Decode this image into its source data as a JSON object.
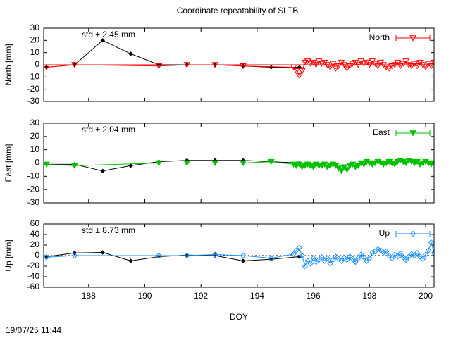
{
  "title": "Coordinate repeatability of SLTB",
  "timestamp": "19/07/25 11:44",
  "chart_data": [
    {
      "type": "line",
      "ylabel": "North [mm]",
      "annotation": "std ± 2.45 mm",
      "annotation_color": "#ff0000",
      "xlim": [
        186.4,
        200.3
      ],
      "xticks": [
        188,
        190,
        192,
        194,
        196,
        198,
        200
      ],
      "xtick_labels": false,
      "ylim": [
        -30,
        30
      ],
      "yticks": [
        -30,
        -20,
        -10,
        0,
        10,
        20,
        30
      ],
      "zero_line": "solid",
      "zero_color": "#ff0000",
      "series": [
        {
          "color": "#000000",
          "marker": "diamond-filled",
          "x": [
            186.5,
            187.5,
            188.5,
            189.5,
            190.5,
            191.5,
            192.5,
            193.5,
            194.5,
            195.5
          ],
          "values": [
            -2,
            0,
            20,
            9,
            0,
            0,
            0,
            -1,
            -2,
            -2
          ]
        },
        {
          "name": "North",
          "color": "#ff0000",
          "marker": "triangle-down-open",
          "x": [
            186.5,
            187.5,
            190.5,
            191.5,
            192.5,
            193.5,
            195.3,
            195.4,
            195.5,
            195.6,
            195.7,
            195.8,
            195.9,
            196.0,
            196.1,
            196.2,
            196.3,
            196.4,
            196.5,
            196.6,
            196.7,
            196.8,
            196.9,
            197.0,
            197.1,
            197.2,
            197.3,
            197.4,
            197.5,
            197.6,
            197.7,
            197.8,
            197.9,
            198.0,
            198.1,
            198.2,
            198.3,
            198.4,
            198.5,
            198.6,
            198.7,
            198.8,
            198.9,
            199.0,
            199.1,
            199.2,
            199.3,
            199.4,
            199.5,
            199.6,
            199.7,
            199.8,
            199.9,
            200.0,
            200.1,
            200.2,
            200.3
          ],
          "values": [
            -2,
            0,
            -1,
            0,
            0,
            -1,
            -2,
            -5,
            -9,
            -5,
            2,
            3,
            1,
            2,
            0,
            3,
            1,
            2,
            0,
            -2,
            1,
            -3,
            -1,
            2,
            0,
            -3,
            -1,
            1,
            2,
            0,
            3,
            1,
            2,
            0,
            3,
            1,
            -1,
            2,
            0,
            -2,
            -3,
            -1,
            0,
            2,
            -1,
            1,
            3,
            0,
            -1,
            1,
            -1,
            2,
            0,
            -2,
            1,
            -1,
            2
          ]
        }
      ]
    },
    {
      "type": "line",
      "ylabel": "East [mm]",
      "annotation": "std ± 2.04 mm",
      "annotation_color": "#00c000",
      "xlim": [
        186.4,
        200.3
      ],
      "xticks": [
        188,
        190,
        192,
        194,
        196,
        198,
        200
      ],
      "xtick_labels": false,
      "ylim": [
        -30,
        30
      ],
      "yticks": [
        -30,
        -20,
        -10,
        0,
        10,
        20,
        30
      ],
      "zero_line": "dashed",
      "zero_color": "#000000",
      "series": [
        {
          "color": "#000000",
          "marker": "diamond-filled",
          "x": [
            186.5,
            187.5,
            188.5,
            189.5,
            190.5,
            191.5,
            192.5,
            193.5,
            194.5,
            195.5
          ],
          "values": [
            -1,
            -1,
            -6,
            -2,
            1,
            2,
            2,
            2,
            1,
            0
          ]
        },
        {
          "name": "East",
          "color": "#00c000",
          "marker": "triangle-down-filled",
          "x": [
            186.5,
            187.5,
            190.5,
            191.5,
            192.5,
            193.5,
            194.5,
            195.3,
            195.4,
            195.5,
            195.6,
            195.7,
            195.8,
            195.9,
            196.0,
            196.1,
            196.2,
            196.3,
            196.4,
            196.5,
            196.6,
            196.7,
            196.8,
            196.9,
            197.0,
            197.1,
            197.2,
            197.3,
            197.4,
            197.5,
            197.6,
            197.7,
            197.8,
            197.9,
            198.0,
            198.1,
            198.2,
            198.3,
            198.4,
            198.5,
            198.6,
            198.7,
            198.8,
            198.9,
            199.0,
            199.1,
            199.2,
            199.3,
            199.4,
            199.5,
            199.6,
            199.7,
            199.8,
            199.9,
            200.0,
            200.1,
            200.2,
            200.3
          ],
          "values": [
            -1,
            -2,
            0,
            0,
            0,
            0,
            1,
            -1,
            -2,
            -1,
            -3,
            -2,
            -1,
            -2,
            -3,
            -1,
            -2,
            -2,
            -1,
            -3,
            -2,
            -1,
            -2,
            -4,
            -6,
            -3,
            -5,
            -2,
            -1,
            -3,
            -2,
            0,
            -1,
            1,
            0,
            -1,
            0,
            1,
            0,
            -1,
            0,
            1,
            0,
            -1,
            1,
            2,
            1,
            0,
            2,
            1,
            0,
            1,
            -1,
            0,
            1,
            0,
            -1,
            0
          ]
        }
      ]
    },
    {
      "type": "line",
      "ylabel": "Up [mm]",
      "annotation": "std ± 8.73 mm",
      "annotation_color": "#1e90ff",
      "xlabel": "DOY",
      "xlim": [
        186.4,
        200.3
      ],
      "xticks": [
        188,
        190,
        192,
        194,
        196,
        198,
        200
      ],
      "xtick_labels": true,
      "ylim": [
        -60,
        60
      ],
      "yticks": [
        -60,
        -40,
        -20,
        0,
        20,
        40,
        60
      ],
      "zero_line": "dashed",
      "zero_color": "#000000",
      "series": [
        {
          "color": "#000000",
          "marker": "diamond-filled",
          "x": [
            186.5,
            187.5,
            188.5,
            189.5,
            190.5,
            191.5,
            192.5,
            193.5,
            194.5,
            195.5
          ],
          "values": [
            -2,
            5,
            6,
            -10,
            -2,
            1,
            0,
            -10,
            -7,
            -2
          ]
        },
        {
          "name": "Up",
          "color": "#1e90ff",
          "marker": "diamond-open",
          "x": [
            186.5,
            187.5,
            190.5,
            191.5,
            192.5,
            193.5,
            194.5,
            195.3,
            195.4,
            195.5,
            195.6,
            195.7,
            195.8,
            195.9,
            196.0,
            196.1,
            196.2,
            196.3,
            196.4,
            196.5,
            196.6,
            196.7,
            196.8,
            196.9,
            197.0,
            197.1,
            197.2,
            197.3,
            197.4,
            197.5,
            197.6,
            197.7,
            197.8,
            197.9,
            198.0,
            198.1,
            198.2,
            198.3,
            198.4,
            198.5,
            198.6,
            198.7,
            198.8,
            198.9,
            199.0,
            199.1,
            199.2,
            199.3,
            199.4,
            199.5,
            199.6,
            199.7,
            199.8,
            199.9,
            200.0,
            200.1,
            200.2,
            200.3
          ],
          "values": [
            -3,
            0,
            0,
            0,
            2,
            0,
            -5,
            3,
            10,
            15,
            0,
            -20,
            -10,
            -15,
            -5,
            -12,
            -8,
            -3,
            -10,
            -5,
            -15,
            -8,
            -2,
            -6,
            -10,
            -4,
            -8,
            -2,
            -6,
            -12,
            -5,
            2,
            -3,
            -10,
            -5,
            5,
            8,
            12,
            10,
            6,
            8,
            0,
            -5,
            2,
            -2,
            4,
            -3,
            -8,
            -2,
            3,
            0,
            5,
            -2,
            -6,
            2,
            10,
            25,
            5
          ]
        }
      ]
    }
  ]
}
